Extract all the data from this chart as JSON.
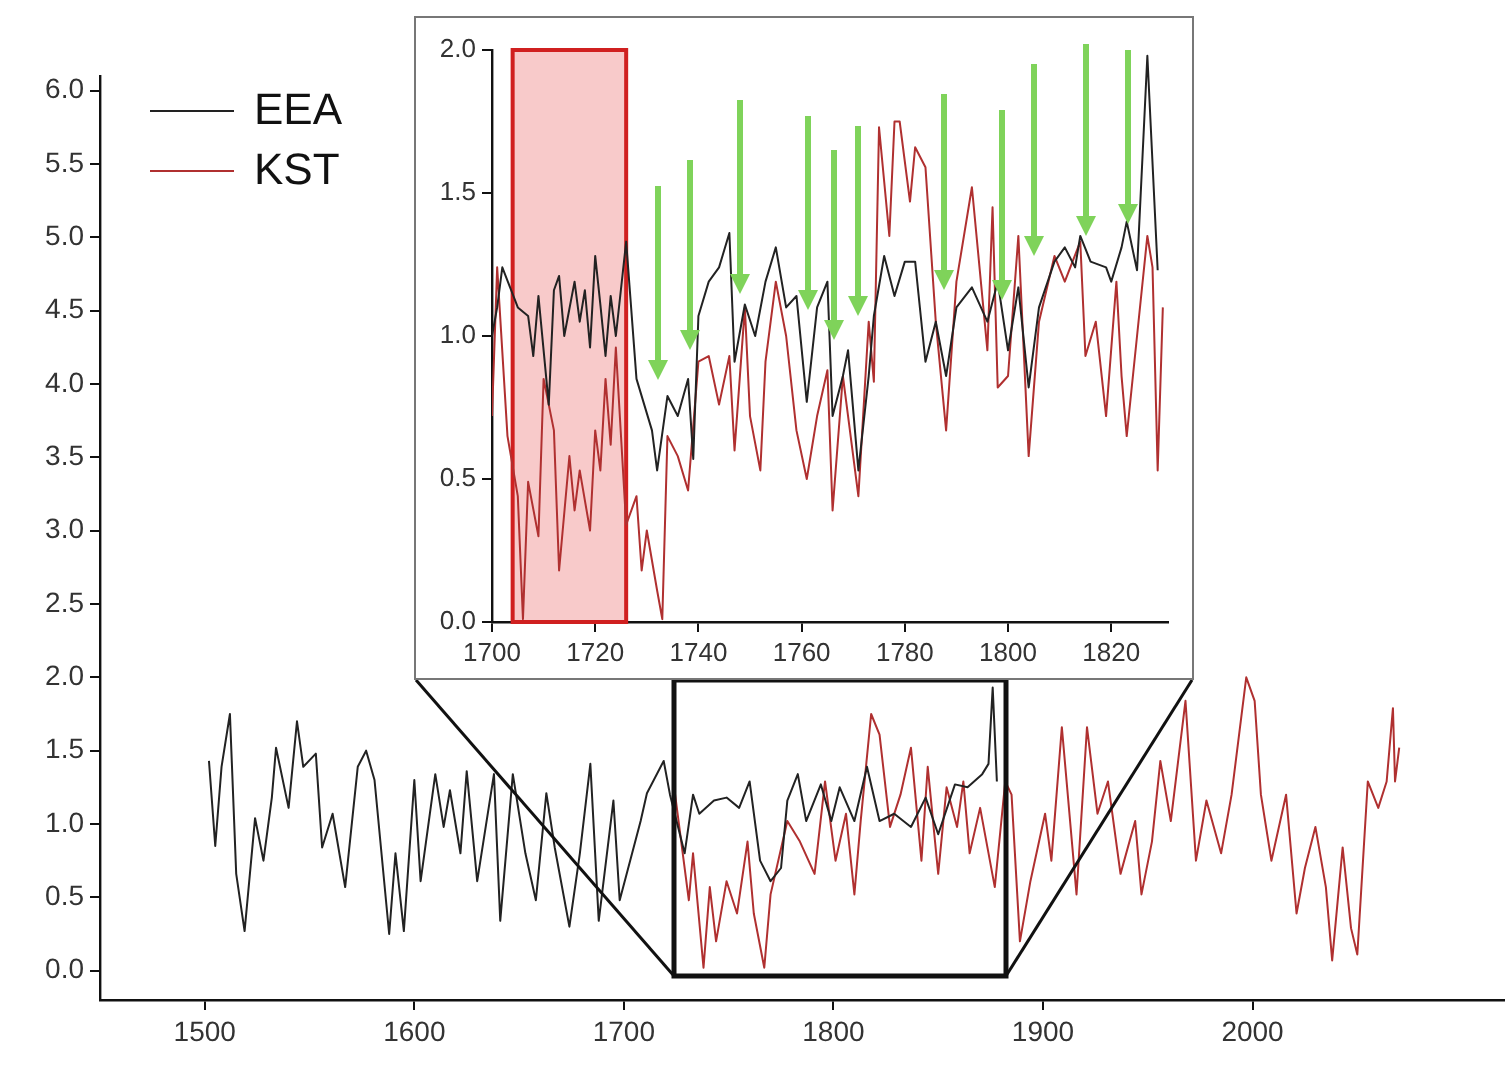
{
  "chart_data": [
    {
      "type": "line",
      "legend": "top left",
      "marker": "none",
      "grid": false,
      "xlim": [
        1450,
        2120
      ],
      "xticks": [
        1500,
        1600,
        1700,
        1800,
        1900,
        2000
      ],
      "ylim": [
        -0.2,
        6.1
      ],
      "yticks": [
        {
          "value": 0,
          "label": "0.0"
        },
        {
          "value": 0.5,
          "label": "0.5"
        },
        {
          "value": 1,
          "label": "1.0"
        },
        {
          "value": 1.5,
          "label": "1.5"
        },
        {
          "value": 2,
          "label": "2.0"
        },
        {
          "value": 2.5,
          "label": "2.5"
        },
        {
          "value": 3,
          "label": "3.0"
        },
        {
          "value": 3.5,
          "label": "3.5"
        },
        {
          "value": 4,
          "label": "4.0"
        },
        {
          "value": 4.5,
          "label": "4.5"
        },
        {
          "value": 5,
          "label": "5.0"
        },
        {
          "value": 5.5,
          "label": "5.5"
        },
        {
          "value": 6,
          "label": "6.0"
        }
      ],
      "series": [
        {
          "name": "EEA",
          "color": "#222222",
          "x": [
            1502,
            1505,
            1508,
            1512,
            1515,
            1519,
            1524,
            1528,
            1532,
            1534,
            1540,
            1544,
            1547,
            1553,
            1556,
            1561,
            1567,
            1573,
            1577,
            1581,
            1588,
            1591,
            1595,
            1600,
            1603,
            1610,
            1614,
            1617,
            1622,
            1625,
            1630,
            1638,
            1641,
            1647,
            1653,
            1658,
            1663,
            1667,
            1674,
            1679,
            1684,
            1688,
            1695,
            1698,
            1708,
            1711,
            1719,
            1722,
            1729,
            1733,
            1736,
            1743,
            1749,
            1755,
            1760,
            1765,
            1770,
            1775,
            1778,
            1783,
            1787,
            1794,
            1799,
            1803,
            1810,
            1816,
            1822,
            1829,
            1837,
            1844,
            1850,
            1858,
            1864,
            1871,
            1874,
            1876,
            1878
          ],
          "values": [
            1.43,
            0.85,
            1.39,
            1.75,
            0.66,
            0.27,
            1.04,
            0.75,
            1.18,
            1.52,
            1.11,
            1.7,
            1.39,
            1.48,
            0.84,
            1.07,
            0.57,
            1.39,
            1.5,
            1.3,
            0.25,
            0.8,
            0.27,
            1.3,
            0.61,
            1.34,
            0.98,
            1.23,
            0.8,
            1.36,
            0.61,
            1.34,
            0.34,
            1.34,
            0.8,
            0.48,
            1.21,
            0.84,
            0.3,
            0.8,
            1.41,
            0.34,
            1.16,
            0.48,
            1.02,
            1.21,
            1.43,
            1.2,
            0.8,
            1.2,
            1.07,
            1.16,
            1.18,
            1.11,
            1.29,
            0.75,
            0.61,
            0.7,
            1.16,
            1.34,
            1.02,
            1.27,
            1.02,
            1.25,
            1.02,
            1.39,
            1.02,
            1.07,
            0.98,
            1.18,
            0.93,
            1.27,
            1.25,
            1.34,
            1.41,
            1.93,
            1.29
          ]
        },
        {
          "name": "KST",
          "color": "#b03030",
          "x": [
            1724,
            1731,
            1733,
            1738,
            1741,
            1744,
            1749,
            1754,
            1759,
            1762,
            1767,
            1770,
            1778,
            1784,
            1791,
            1796,
            1801,
            1806,
            1810,
            1813,
            1818,
            1822,
            1827,
            1832,
            1837,
            1842,
            1845,
            1850,
            1854,
            1859,
            1862,
            1865,
            1870,
            1877,
            1882,
            1885,
            1889,
            1894,
            1901,
            1904,
            1909,
            1916,
            1921,
            1926,
            1931,
            1937,
            1944,
            1947,
            1952,
            1956,
            1961,
            1968,
            1973,
            1978,
            1985,
            1990,
            1997,
            2001,
            2004,
            2009,
            2016,
            2021,
            2025,
            2030,
            2035,
            2038,
            2043,
            2047,
            2050,
            2055,
            2060,
            2064,
            2067,
            2068,
            2070
          ],
          "values": [
            1.25,
            0.48,
            0.8,
            0.02,
            0.57,
            0.2,
            0.61,
            0.39,
            0.88,
            0.39,
            0.02,
            0.52,
            1.02,
            0.88,
            0.66,
            1.29,
            0.75,
            1.07,
            0.52,
            1.02,
            1.75,
            1.61,
            0.98,
            1.2,
            1.52,
            0.75,
            1.39,
            0.66,
            1.25,
            0.98,
            1.29,
            0.8,
            1.11,
            0.57,
            1.29,
            1.2,
            0.2,
            0.61,
            1.07,
            0.75,
            1.66,
            0.52,
            1.66,
            1.07,
            1.29,
            0.66,
            1.02,
            0.52,
            0.88,
            1.43,
            1.02,
            1.84,
            0.75,
            1.16,
            0.8,
            1.2,
            2.0,
            1.84,
            1.2,
            0.75,
            1.2,
            0.39,
            0.7,
            0.98,
            0.57,
            0.07,
            0.84,
            0.29,
            0.11,
            1.29,
            1.11,
            1.29,
            1.79,
            1.29,
            1.52
          ]
        }
      ]
    },
    {
      "type": "line",
      "marker": "none",
      "grid": false,
      "xlim": [
        1700,
        1831
      ],
      "xticks": [
        1700,
        1720,
        1740,
        1760,
        1780,
        1800,
        1820
      ],
      "ylim": [
        0,
        2
      ],
      "yticks": [
        {
          "value": 0,
          "label": "0.0"
        },
        {
          "value": 0.5,
          "label": "0.5"
        },
        {
          "value": 1,
          "label": "1.0"
        },
        {
          "value": 1.5,
          "label": "1.5"
        },
        {
          "value": 2,
          "label": "2.0"
        }
      ],
      "bands": [
        {
          "axis": "x",
          "from": 1704,
          "to": 1726,
          "color": "#f8caca"
        }
      ],
      "series": [
        {
          "color": "#222222",
          "x": [
            1700,
            1701,
            1702,
            1705,
            1707,
            1708,
            1709,
            1711,
            1712,
            1713,
            1714,
            1716,
            1717,
            1718,
            1719,
            1720,
            1721,
            1722,
            1723,
            1724,
            1726,
            1728,
            1731,
            1732,
            1734,
            1736,
            1738,
            1739,
            1740,
            1742,
            1744,
            1746,
            1747,
            1749,
            1751,
            1753,
            1755,
            1757,
            1759,
            1761,
            1763,
            1765,
            1766,
            1768,
            1769,
            1771,
            1773,
            1774,
            1776,
            1778,
            1780,
            1782,
            1784,
            1786,
            1788,
            1790,
            1793,
            1796,
            1798,
            1800,
            1802,
            1804,
            1806,
            1809,
            1811,
            1813,
            1814,
            1816,
            1819,
            1820,
            1822,
            1823,
            1825,
            1827,
            1829
          ],
          "values": [
            1.0,
            1.1,
            1.24,
            1.1,
            1.07,
            0.93,
            1.14,
            0.76,
            1.16,
            1.21,
            1.0,
            1.19,
            1.05,
            1.16,
            0.96,
            1.28,
            1.11,
            0.93,
            1.14,
            1.0,
            1.33,
            0.85,
            0.67,
            0.53,
            0.79,
            0.72,
            0.85,
            0.57,
            1.07,
            1.19,
            1.24,
            1.36,
            0.91,
            1.11,
            1.0,
            1.19,
            1.31,
            1.1,
            1.14,
            0.77,
            1.1,
            1.19,
            0.72,
            0.86,
            0.95,
            0.53,
            0.86,
            1.07,
            1.28,
            1.14,
            1.26,
            1.26,
            0.91,
            1.05,
            0.86,
            1.1,
            1.17,
            1.05,
            1.19,
            0.95,
            1.17,
            0.82,
            1.1,
            1.26,
            1.31,
            1.24,
            1.35,
            1.26,
            1.24,
            1.19,
            1.31,
            1.4,
            1.23,
            1.98,
            1.23
          ]
        },
        {
          "color": "#b03030",
          "x": [
            1700,
            1701,
            1703,
            1705,
            1706,
            1707,
            1709,
            1710,
            1712,
            1713,
            1715,
            1716,
            1717,
            1719,
            1720,
            1721,
            1722,
            1723,
            1724,
            1726,
            1728,
            1729,
            1730,
            1732,
            1733,
            1734,
            1736,
            1738,
            1740,
            1742,
            1744,
            1746,
            1747,
            1749,
            1750,
            1752,
            1753,
            1755,
            1757,
            1759,
            1761,
            1763,
            1765,
            1766,
            1768,
            1771,
            1773,
            1774,
            1775,
            1777,
            1778,
            1779,
            1781,
            1782,
            1784,
            1786,
            1788,
            1790,
            1793,
            1796,
            1797,
            1798,
            1800,
            1802,
            1804,
            1806,
            1809,
            1811,
            1814,
            1815,
            1817,
            1819,
            1821,
            1822,
            1823,
            1825,
            1827,
            1828,
            1829,
            1830
          ],
          "values": [
            0.72,
            1.24,
            0.65,
            0.44,
            0.01,
            0.49,
            0.3,
            0.85,
            0.67,
            0.18,
            0.58,
            0.39,
            0.53,
            0.32,
            0.67,
            0.53,
            0.85,
            0.62,
            0.96,
            0.34,
            0.44,
            0.18,
            0.32,
            0.11,
            0.01,
            0.65,
            0.58,
            0.46,
            0.91,
            0.93,
            0.76,
            0.93,
            0.6,
            1.1,
            0.72,
            0.53,
            0.91,
            1.19,
            1.0,
            0.67,
            0.5,
            0.72,
            0.88,
            0.39,
            0.86,
            0.44,
            1.05,
            0.84,
            1.73,
            1.35,
            1.75,
            1.75,
            1.47,
            1.66,
            1.59,
            1.05,
            0.67,
            1.19,
            1.52,
            0.95,
            1.45,
            0.82,
            0.86,
            1.35,
            0.58,
            1.05,
            1.28,
            1.19,
            1.33,
            0.93,
            1.05,
            0.72,
            1.19,
            0.86,
            0.65,
            1.0,
            1.35,
            1.24,
            0.53,
            1.1
          ]
        }
      ]
    }
  ]
}
